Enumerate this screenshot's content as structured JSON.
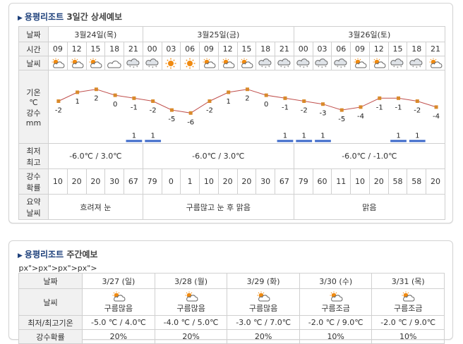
{
  "daily": {
    "title_place": "용평리조트",
    "title_rest": "3일간 상세예보",
    "labels": {
      "date": "날짜",
      "time": "시간",
      "weather": "날씨",
      "temp_lines": [
        "기온",
        "℃",
        "강수",
        "mm"
      ],
      "minmax_lines": [
        "최저",
        "최고"
      ],
      "prob_lines": [
        "강수",
        "확률"
      ],
      "summary_lines": [
        "요약",
        "날씨"
      ]
    },
    "dates": [
      "3월24일(목)",
      "3월25일(금)",
      "3월26일(토)"
    ],
    "times": [
      "09",
      "12",
      "15",
      "18",
      "21",
      "00",
      "03",
      "06",
      "09",
      "12",
      "15",
      "18",
      "21",
      "00",
      "03",
      "06",
      "09",
      "12",
      "15",
      "18",
      "21"
    ],
    "weather_icons": [
      "sun-cloud-icon",
      "sun-cloud-icon",
      "sun-cloud-icon",
      "cloud-icon",
      "snow-cloud-icon",
      "snow-cloud-icon",
      "sun-icon",
      "sun-icon",
      "sun-cloud-icon",
      "sun-cloud-icon",
      "sun-cloud-icon",
      "snow-cloud-icon",
      "snow-cloud-icon",
      "snow-cloud-icon",
      "snow-cloud-icon",
      "snow-cloud-icon",
      "sun-cloud-icon",
      "sun-cloud-icon",
      "snow-cloud-icon",
      "snow-cloud-icon",
      "sun-cloud-icon"
    ],
    "temperatures": [
      "-2",
      "1",
      "2",
      "0",
      "-1",
      "-2",
      "-5",
      "-6",
      "-2",
      "1",
      "2",
      "0",
      "-1",
      "-2",
      "-3",
      "-5",
      "-4",
      "-1",
      "-1",
      "-2",
      "-4"
    ],
    "precip": [
      "",
      "",
      "",
      "",
      "1",
      "1",
      "",
      "",
      "",
      "",
      "",
      "",
      "1",
      "1",
      "1",
      "",
      "",
      "",
      "1",
      "1",
      ""
    ],
    "minmax": [
      "-6.0℃ / 3.0℃",
      "-6.0℃ / 3.0℃",
      "-6.0℃ / -1.0℃"
    ],
    "prob": [
      "10",
      "20",
      "20",
      "30",
      "67",
      "79",
      "0",
      "1",
      "10",
      "20",
      "20",
      "30",
      "67",
      "79",
      "60",
      "11",
      "10",
      "20",
      "58",
      "58",
      "20"
    ],
    "summary": [
      "흐려져 눈",
      "구름많고 눈 후 맑음",
      "맑음"
    ]
  },
  "weekly": {
    "title_place": "용평리조트",
    "title_rest": "주간예보",
    "labels": {
      "date": "날짜",
      "weather": "날씨",
      "minmax": "최저/최고기온",
      "prob": "강수확률"
    },
    "days": [
      {
        "date": "3/27 (일)",
        "icon": "sun-cloud-icon",
        "desc": "구름많음",
        "minmax": "-5.0 ℃ / 4.0℃",
        "prob": "20%"
      },
      {
        "date": "3/28 (월)",
        "icon": "sun-cloud-icon",
        "desc": "구름많음",
        "minmax": "-4.0 ℃ / 5.0℃",
        "prob": "20%"
      },
      {
        "date": "3/29 (화)",
        "icon": "sun-cloud-icon",
        "desc": "구름많음",
        "minmax": "-3.0 ℃ / 7.0℃",
        "prob": "20%"
      },
      {
        "date": "3/30 (수)",
        "icon": "sun-cloud-icon",
        "desc": "구름조금",
        "minmax": "-2.0 ℃ / 9.0℃",
        "prob": "10%"
      },
      {
        "date": "3/31 (목)",
        "icon": "sun-cloud-icon",
        "desc": "구름조금",
        "minmax": "-2.0 ℃ / 9.0℃",
        "prob": "10%"
      }
    ]
  },
  "colors": {
    "line": "#c0504d",
    "point": "#d98a2b",
    "precip_bar": "#3a67c9",
    "title": "#1c3f7a"
  }
}
